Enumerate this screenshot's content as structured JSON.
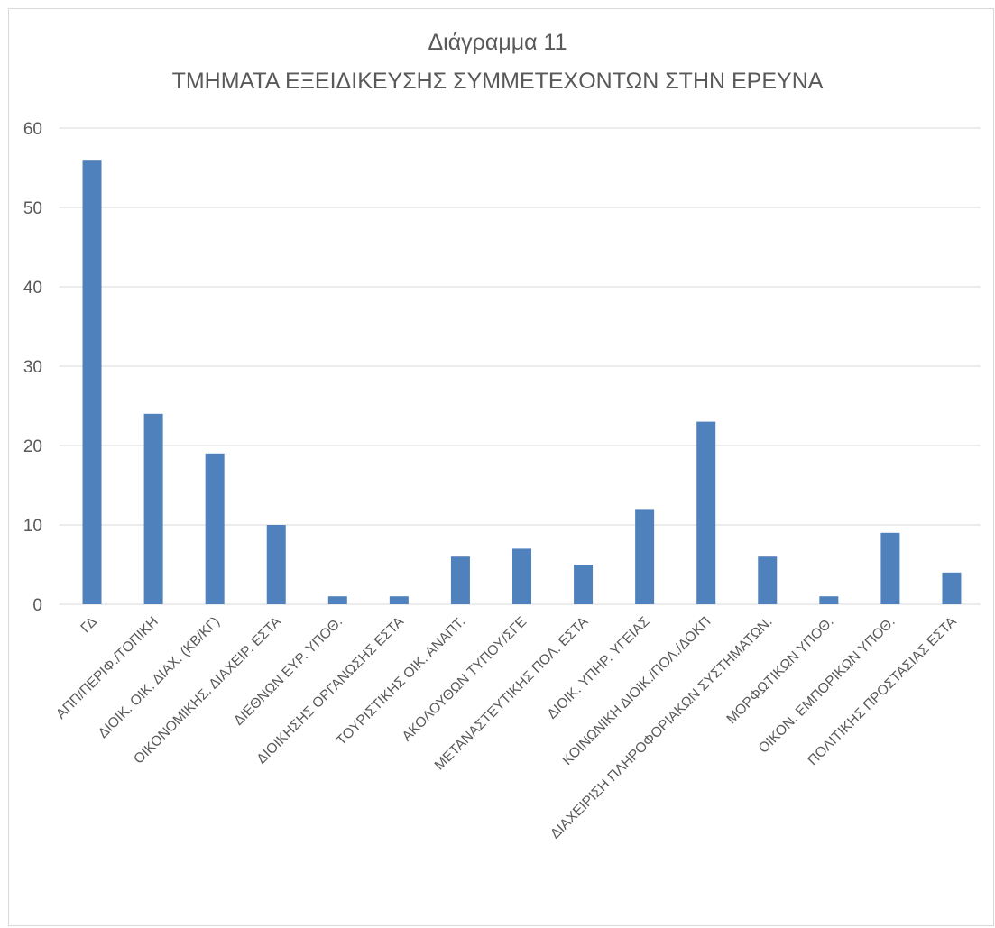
{
  "chart_data": {
    "type": "bar",
    "title": "Διάγραμμα 11",
    "subtitle": "ΤΜΗΜΑΤΑ ΕΞΕΙΔΙΚΕΥΣΗΣ ΣΥΜΜΕΤΕΧΟΝΤΩΝ ΣΤΗΝ ΕΡΕΥΝΑ",
    "categories": [
      "ΓΔ",
      "ΑΠΠ/ΠΕΡΙΦ./ΤΟΠΙΚΗ",
      "ΔΙΟΙΚ. ΟΙΚ. ΔΙΑΧ. (ΚΒ/ΚΓ)",
      "ΟΙΚΟΝΟΜΙΚΗΣ. ΔΙΑΧΕΙΡ. ΕΣΤΑ",
      "ΔΙΕΘΝΩΝ ΕΥΡ. ΥΠΟΘ.",
      "ΔΙΟΙΚΗΣΗΣ ΟΡΓΑΝΩΣΗΣ ΕΣΤΑ",
      "ΤΟΥΡΙΣΤΙΚΗΣ ΟΙΚ. ΑΝΑΠΤ.",
      "ΑΚΟΛΟΥΘΩΝ ΤΥΠΟΥ/ΣΓΕ",
      "ΜΕΤΑΝΑΣΤΕΥΤΙΚΗΣ ΠΟΛ. ΕΣΤΑ",
      "ΔΙΟΙΚ. ΥΠΗΡ. ΥΓΕΙΑΣ",
      "ΚΟΙΝΩΝΙΚΗ ΔΙΟΙΚ./ΠΟΛ./ΔΟΚΠ",
      "ΔΙΑΧΕΙΡΙΣΗ ΠΛΗΡΟΦΟΡΙΑΚΩΝ ΣΥΣΤΗΜΑΤΩΝ.",
      "ΜΟΡΦΩΤΙΚΩΝ ΥΠΟΘ.",
      "ΟΙΚΟΝ. ΕΜΠΟΡΙΚΩΝ ΥΠΟΘ.",
      "ΠΟΛΙΤΙΚΗΣ ΠΡΟΣΤΑΣΙΑΣ ΕΣΤΑ"
    ],
    "values": [
      56,
      24,
      19,
      10,
      1,
      1,
      6,
      7,
      5,
      12,
      23,
      6,
      1,
      9,
      4
    ],
    "ylim": [
      0,
      60
    ],
    "yticks": [
      "0",
      "10",
      "20",
      "30",
      "40",
      "50",
      "60"
    ],
    "grid": true,
    "legend": "none",
    "xlabel": "",
    "ylabel": ""
  },
  "colors": {
    "bar": "#4f81bd",
    "grid": "#d9d9d9",
    "text": "#595959",
    "border": "#d9d9d9"
  }
}
